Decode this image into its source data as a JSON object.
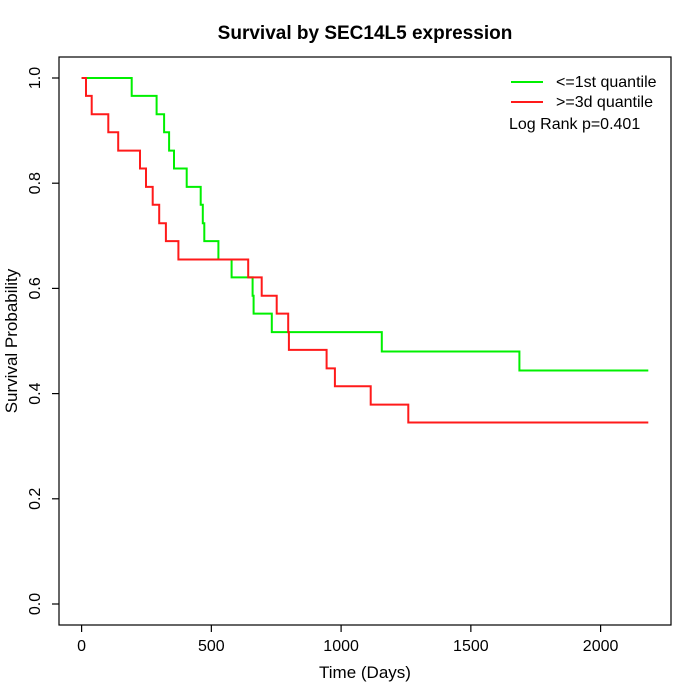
{
  "title": "Survival by SEC14L5 expression",
  "axes": {
    "x": {
      "label": "Time (Days)",
      "tick_values": [
        0,
        500,
        1000,
        1500,
        2000
      ],
      "tick_labels": [
        "0",
        "500",
        "1000",
        "1500",
        "2000"
      ]
    },
    "y": {
      "label": "Survival Probability",
      "tick_values": [
        0.0,
        0.2,
        0.4,
        0.6,
        0.8,
        1.0
      ],
      "tick_labels": [
        "0.0",
        "0.2",
        "0.4",
        "0.6",
        "0.8",
        "1.0"
      ]
    }
  },
  "legend": [
    {
      "label": "<=1st quantile",
      "color": "#00f000"
    },
    {
      "label": ">=3d quantile",
      "color": "#ff1a1a"
    }
  ],
  "stats": {
    "log_rank_label": "Log Rank p=0.401"
  },
  "chart_data": {
    "type": "line",
    "subtype": "kaplan-meier-step",
    "title": "Survival by SEC14L5 expression",
    "xlabel": "Time (Days)",
    "ylabel": "Survival Probability",
    "xlim": [
      0,
      2270
    ],
    "ylim": [
      -0.04,
      1.04
    ],
    "grid": false,
    "legend_position": "top-right",
    "annotation": "Log Rank p=0.401",
    "series": [
      {
        "name": "<=1st quantile",
        "color": "#00f000",
        "end_day": 2184,
        "points": [
          [
            0,
            1.0
          ],
          [
            193,
            0.966
          ],
          [
            289,
            0.931
          ],
          [
            318,
            0.897
          ],
          [
            337,
            0.862
          ],
          [
            356,
            0.828
          ],
          [
            405,
            0.793
          ],
          [
            459,
            0.759
          ],
          [
            467,
            0.724
          ],
          [
            473,
            0.69
          ],
          [
            527,
            0.655
          ],
          [
            578,
            0.621
          ],
          [
            659,
            0.586
          ],
          [
            663,
            0.552
          ],
          [
            733,
            0.517
          ],
          [
            1157,
            0.48
          ],
          [
            1687,
            0.444
          ]
        ]
      },
      {
        "name": ">=3d quantile",
        "color": "#ff1a1a",
        "end_day": 2184,
        "points": [
          [
            0,
            1.0
          ],
          [
            17,
            0.966
          ],
          [
            39,
            0.931
          ],
          [
            103,
            0.897
          ],
          [
            141,
            0.862
          ],
          [
            225,
            0.828
          ],
          [
            248,
            0.793
          ],
          [
            274,
            0.759
          ],
          [
            299,
            0.724
          ],
          [
            325,
            0.69
          ],
          [
            373,
            0.655
          ],
          [
            642,
            0.621
          ],
          [
            694,
            0.586
          ],
          [
            752,
            0.552
          ],
          [
            796,
            0.517
          ],
          [
            799,
            0.483
          ],
          [
            944,
            0.448
          ],
          [
            976,
            0.414
          ],
          [
            1114,
            0.379
          ],
          [
            1259,
            0.345
          ]
        ]
      }
    ]
  }
}
